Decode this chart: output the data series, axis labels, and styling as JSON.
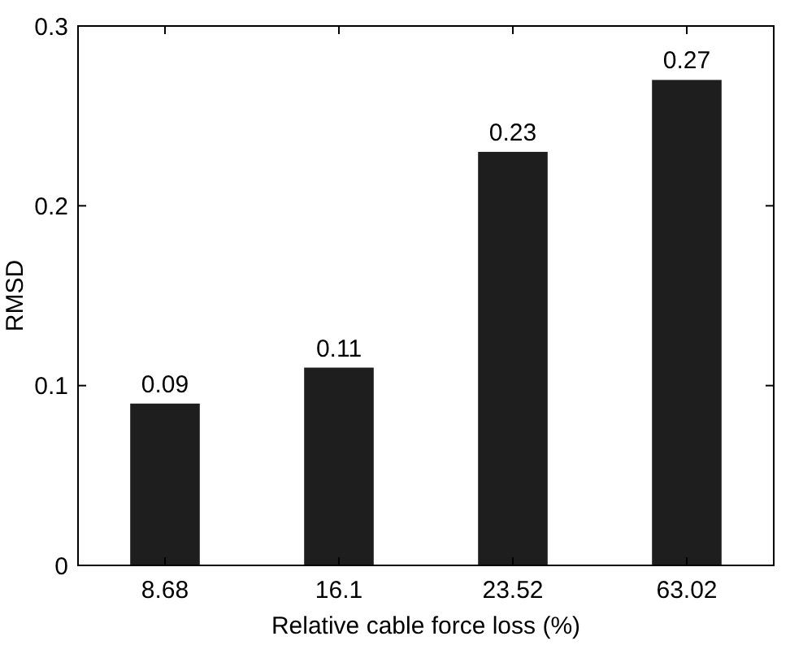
{
  "chart_data": {
    "type": "bar",
    "xlabel": "Relative cable force loss (%)",
    "ylabel": "RMSD",
    "categories": [
      "8.68",
      "16.1",
      "23.52",
      "63.02"
    ],
    "values": [
      0.09,
      0.11,
      0.23,
      0.27
    ],
    "color": "#1e1e1e",
    "ylim": [
      0,
      0.3
    ],
    "yticks": [
      0,
      0.1,
      0.2,
      0.3
    ],
    "data_labels": true,
    "grid": false
  }
}
